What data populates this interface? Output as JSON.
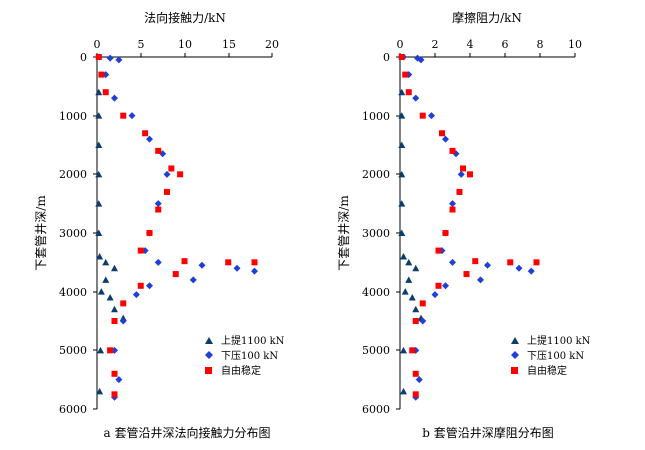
{
  "charts": [
    {
      "title": "法向接触力/kN",
      "ylabel": "下套管井深/m",
      "caption": "a  套管沿井深法向接触力分布图",
      "x_ticks": [
        "0",
        "5",
        "10",
        "15",
        "20"
      ],
      "y_ticks": [
        "0",
        "1000",
        "2000",
        "3000",
        "4000",
        "5000",
        "6000"
      ]
    },
    {
      "title": "摩擦阻力/kN",
      "ylabel": "下套管井深/m",
      "caption": "b  套管沿井深摩阻分布图",
      "x_ticks": [
        "0",
        "2",
        "4",
        "6",
        "8",
        "10"
      ],
      "y_ticks": [
        "0",
        "1000",
        "2000",
        "3000",
        "4000",
        "5000",
        "6000"
      ]
    }
  ],
  "legend": [
    "上提1100 kN",
    "下压100 kN",
    "自由稳定"
  ],
  "colors": {
    "lift": "#0b3d6e",
    "press": "#1f3fd6",
    "free": "#ff0000"
  },
  "chart_data": [
    {
      "type": "scatter",
      "title": "法向接触力/kN",
      "xlabel": "法向接触力/kN",
      "ylabel": "下套管井深/m",
      "xlim": [
        0,
        20
      ],
      "ylim": [
        0,
        6000
      ],
      "y_inverted": true,
      "x_axis_position": "top",
      "series": [
        {
          "name": "上提1100 kN",
          "marker": "triangle",
          "points": [
            [
              0.2,
              600
            ],
            [
              0.2,
              1000
            ],
            [
              0.2,
              1500
            ],
            [
              0.2,
              2000
            ],
            [
              0.2,
              2500
            ],
            [
              0.2,
              3000
            ],
            [
              0.3,
              3400
            ],
            [
              1.0,
              3500
            ],
            [
              2.0,
              3600
            ],
            [
              1.0,
              3800
            ],
            [
              0.5,
              4000
            ],
            [
              1.5,
              4100
            ],
            [
              3.0,
              4450
            ],
            [
              2.0,
              4300
            ],
            [
              0.4,
              5000
            ],
            [
              0.3,
              5700
            ]
          ]
        },
        {
          "name": "下压100 kN",
          "marker": "diamond",
          "points": [
            [
              0.3,
              0
            ],
            [
              1.5,
              20
            ],
            [
              2.5,
              50
            ],
            [
              1.0,
              300
            ],
            [
              2.0,
              700
            ],
            [
              4.0,
              1000
            ],
            [
              6.0,
              1400
            ],
            [
              7.5,
              1650
            ],
            [
              8.0,
              2000
            ],
            [
              7.0,
              2500
            ],
            [
              6.0,
              3000
            ],
            [
              5.5,
              3300
            ],
            [
              7.0,
              3500
            ],
            [
              12.0,
              3550
            ],
            [
              16.0,
              3600
            ],
            [
              18.0,
              3650
            ],
            [
              11.0,
              3800
            ],
            [
              6.0,
              3900
            ],
            [
              4.5,
              4050
            ],
            [
              3.0,
              4500
            ],
            [
              2.0,
              5000
            ],
            [
              2.5,
              5500
            ],
            [
              2.0,
              5800
            ]
          ]
        },
        {
          "name": "自由稳定",
          "marker": "square",
          "points": [
            [
              0.2,
              0
            ],
            [
              0.5,
              300
            ],
            [
              1.0,
              600
            ],
            [
              3.0,
              1000
            ],
            [
              5.5,
              1300
            ],
            [
              7.0,
              1600
            ],
            [
              8.5,
              1900
            ],
            [
              9.5,
              2000
            ],
            [
              8.0,
              2300
            ],
            [
              7.0,
              2600
            ],
            [
              6.0,
              3000
            ],
            [
              5.0,
              3300
            ],
            [
              10.0,
              3480
            ],
            [
              15.0,
              3500
            ],
            [
              18.0,
              3500
            ],
            [
              9.0,
              3700
            ],
            [
              5.0,
              3900
            ],
            [
              3.0,
              4200
            ],
            [
              2.0,
              4500
            ],
            [
              1.5,
              5000
            ],
            [
              2.0,
              5400
            ],
            [
              2.0,
              5750
            ]
          ]
        }
      ]
    },
    {
      "type": "scatter",
      "title": "摩擦阻力/kN",
      "xlabel": "摩擦阻力/kN",
      "ylabel": "下套管井深/m",
      "xlim": [
        0,
        10
      ],
      "ylim": [
        0,
        6000
      ],
      "y_inverted": true,
      "x_axis_position": "top",
      "series": [
        {
          "name": "上提1100 kN",
          "marker": "triangle",
          "points": [
            [
              0.1,
              600
            ],
            [
              0.1,
              1000
            ],
            [
              0.1,
              1500
            ],
            [
              0.1,
              2000
            ],
            [
              0.1,
              2500
            ],
            [
              0.1,
              3000
            ],
            [
              0.2,
              3400
            ],
            [
              0.5,
              3500
            ],
            [
              0.9,
              3600
            ],
            [
              0.5,
              3800
            ],
            [
              0.3,
              4000
            ],
            [
              0.7,
              4100
            ],
            [
              1.2,
              4450
            ],
            [
              0.9,
              4300
            ],
            [
              0.2,
              5000
            ],
            [
              0.2,
              5700
            ]
          ]
        },
        {
          "name": "下压100 kN",
          "marker": "diamond",
          "points": [
            [
              0.2,
              0
            ],
            [
              1.0,
              20
            ],
            [
              1.2,
              50
            ],
            [
              0.5,
              300
            ],
            [
              0.9,
              700
            ],
            [
              1.8,
              1000
            ],
            [
              2.6,
              1400
            ],
            [
              3.2,
              1650
            ],
            [
              3.5,
              2000
            ],
            [
              3.0,
              2500
            ],
            [
              2.6,
              3000
            ],
            [
              2.4,
              3300
            ],
            [
              3.0,
              3500
            ],
            [
              5.0,
              3550
            ],
            [
              6.8,
              3600
            ],
            [
              7.5,
              3650
            ],
            [
              4.6,
              3800
            ],
            [
              2.6,
              3900
            ],
            [
              2.0,
              4050
            ],
            [
              1.3,
              4500
            ],
            [
              0.9,
              5000
            ],
            [
              1.1,
              5500
            ],
            [
              0.9,
              5800
            ]
          ]
        },
        {
          "name": "自由稳定",
          "marker": "square",
          "points": [
            [
              0.1,
              0
            ],
            [
              0.3,
              300
            ],
            [
              0.5,
              600
            ],
            [
              1.3,
              1000
            ],
            [
              2.4,
              1300
            ],
            [
              3.0,
              1600
            ],
            [
              3.6,
              1900
            ],
            [
              4.0,
              2000
            ],
            [
              3.4,
              2300
            ],
            [
              3.0,
              2600
            ],
            [
              2.6,
              3000
            ],
            [
              2.2,
              3300
            ],
            [
              4.3,
              3480
            ],
            [
              6.3,
              3500
            ],
            [
              7.8,
              3500
            ],
            [
              3.8,
              3700
            ],
            [
              2.2,
              3900
            ],
            [
              1.3,
              4200
            ],
            [
              0.9,
              4500
            ],
            [
              0.7,
              5000
            ],
            [
              0.9,
              5400
            ],
            [
              0.9,
              5750
            ]
          ]
        }
      ]
    }
  ]
}
